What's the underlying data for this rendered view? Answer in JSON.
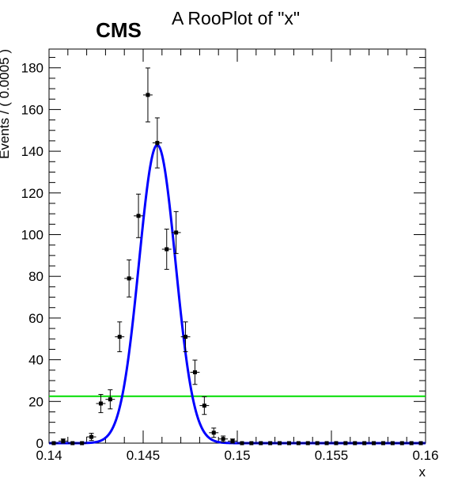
{
  "chart_data": {
    "type": "scatter",
    "title": "A RooPlot of \"x\"",
    "experiment_label": "CMS",
    "xlabel": "x",
    "ylabel": "Events / ( 0.0005 )",
    "xlim": [
      0.14,
      0.16
    ],
    "ylim": [
      0,
      189
    ],
    "x_tick_labels": [
      "0.14",
      "0.145",
      "0.15",
      "0.155",
      "0.16"
    ],
    "x_tick_values": [
      0.14,
      0.145,
      0.15,
      0.155,
      0.16
    ],
    "y_tick_labels": [
      "0",
      "20",
      "40",
      "60",
      "80",
      "100",
      "120",
      "140",
      "160",
      "180"
    ],
    "y_tick_values": [
      0,
      20,
      40,
      60,
      80,
      100,
      120,
      140,
      160,
      180
    ],
    "series": [
      {
        "kind": "data_points_with_errors",
        "color": "#000000",
        "x": [
          0.14025,
          0.14075,
          0.14125,
          0.14175,
          0.14225,
          0.14275,
          0.14325,
          0.14375,
          0.14425,
          0.14475,
          0.14525,
          0.14575,
          0.14625,
          0.14675,
          0.14725,
          0.14775,
          0.14825,
          0.14875,
          0.14925,
          0.14975,
          0.15025,
          0.15075,
          0.15125,
          0.15175,
          0.15225,
          0.15275,
          0.15325,
          0.15375,
          0.15425,
          0.15475,
          0.15525,
          0.15575,
          0.15625,
          0.15675,
          0.15725,
          0.15775,
          0.15825,
          0.15875,
          0.15925,
          0.15975
        ],
        "y": [
          0,
          1,
          0,
          0,
          3,
          19,
          21,
          51,
          79,
          109,
          167,
          144,
          93,
          101,
          51,
          34,
          18,
          5,
          2,
          1,
          0,
          0,
          0,
          0,
          0,
          0,
          0,
          0,
          0,
          0,
          0,
          0,
          0,
          0,
          0,
          0,
          0,
          0,
          0,
          0
        ]
      },
      {
        "kind": "gaussian_fit_curve",
        "color": "#0000ff",
        "peak_x": 0.14575,
        "peak_y": 143,
        "sigma": 0.00097
      },
      {
        "kind": "flat_line",
        "color": "#00dd00",
        "y": 22.5
      }
    ]
  }
}
